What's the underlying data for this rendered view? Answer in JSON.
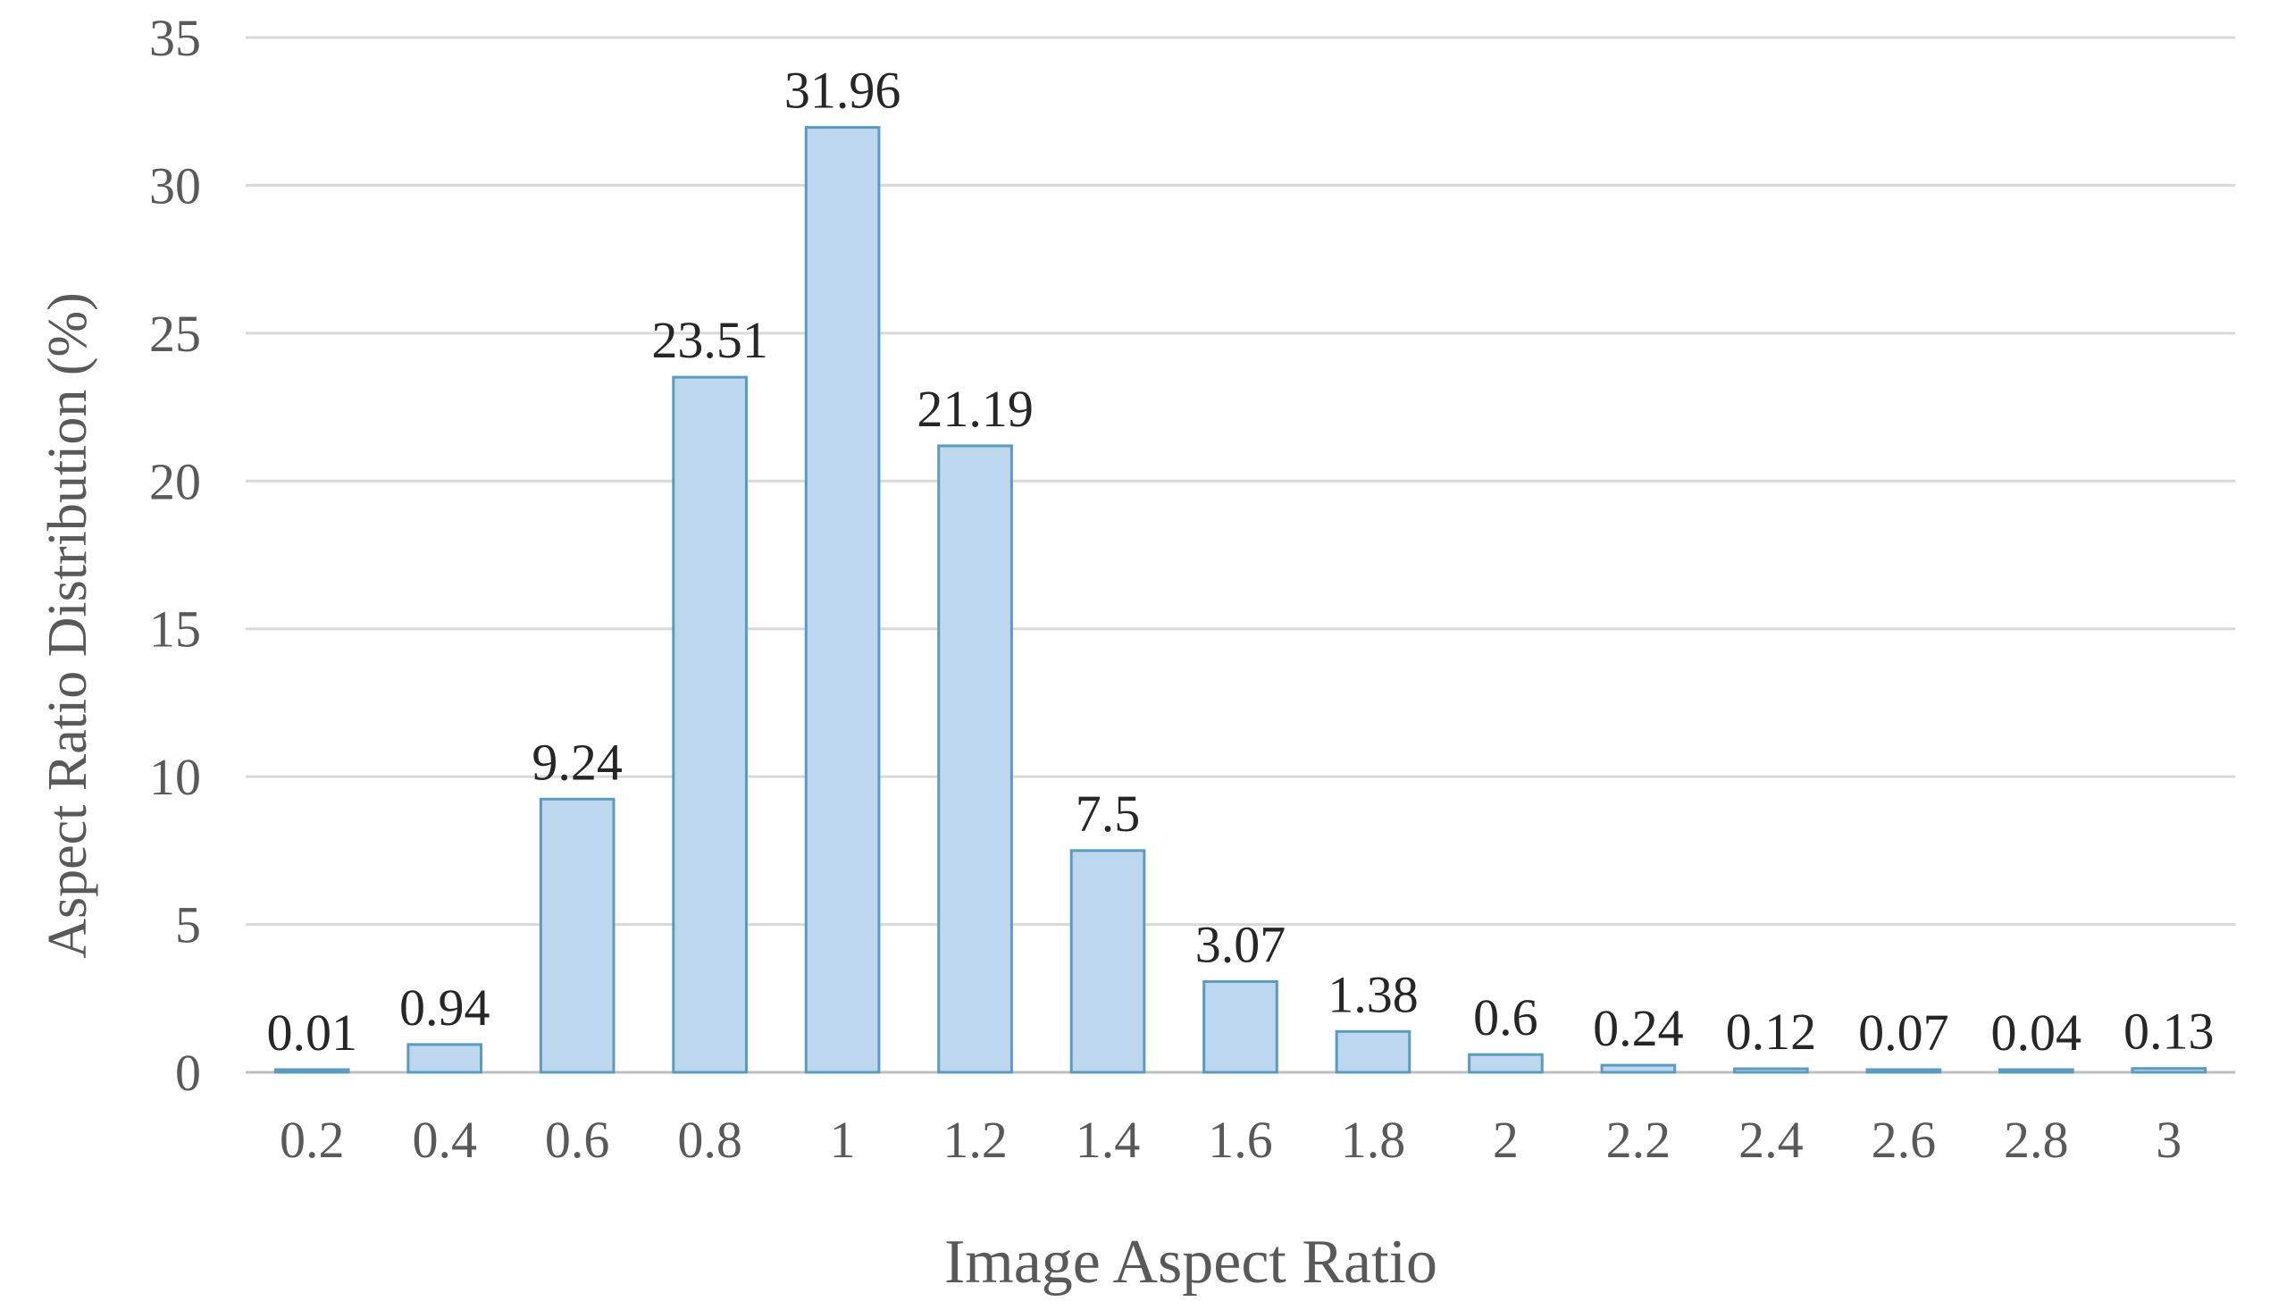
{
  "chart_data": {
    "type": "bar",
    "categories": [
      "0.2",
      "0.4",
      "0.6",
      "0.8",
      "1",
      "1.2",
      "1.4",
      "1.6",
      "1.8",
      "2",
      "2.2",
      "2.4",
      "2.6",
      "2.8",
      "3"
    ],
    "values": [
      0.01,
      0.94,
      9.24,
      23.51,
      31.96,
      21.19,
      7.5,
      3.07,
      1.38,
      0.6,
      0.24,
      0.12,
      0.07,
      0.04,
      0.13
    ],
    "data_labels": [
      "0.01",
      "0.94",
      "9.24",
      "23.51",
      "31.96",
      "21.19",
      "7.5",
      "3.07",
      "1.38",
      "0.6",
      "0.24",
      "0.12",
      "0.07",
      "0.04",
      "0.13"
    ],
    "xlabel": "Image Aspect Ratio",
    "ylabel": "Aspect Ratio Distribution (%)",
    "ylim": [
      0,
      35
    ],
    "yticks": [
      "0",
      "5",
      "10",
      "15",
      "20",
      "25",
      "30",
      "35"
    ],
    "grid": "horizontal",
    "legend": "none",
    "colors": {
      "bar_fill": "#bdd7ee",
      "bar_stroke": "#5b9bc0",
      "grid": "#d9d9d9",
      "axis": "#bfbfbf",
      "tick_text": "#595959",
      "label_text": "#262626"
    }
  }
}
